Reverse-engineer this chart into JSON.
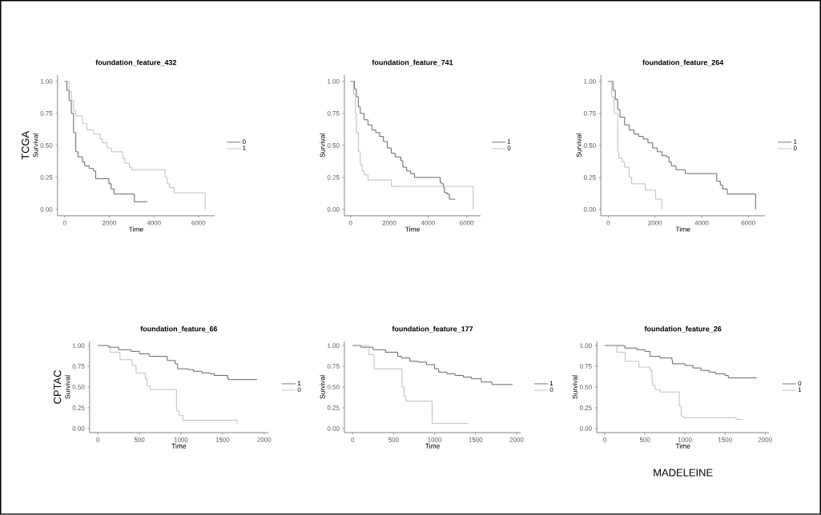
{
  "chart_data": [
    {
      "type": "step",
      "title": "foundation_feature_432",
      "xlabel": "Time",
      "ylabel": "Survival",
      "xlim": [
        -320,
        6720
      ],
      "ylim": [
        -0.05,
        1.05
      ],
      "xticks": [
        0,
        2000,
        4000,
        6000
      ],
      "yticks": [
        {
          "value": 0,
          "label": "0.00"
        },
        {
          "value": 0.25,
          "label": "0.25"
        },
        {
          "value": 0.5,
          "label": "0.50"
        },
        {
          "value": 0.75,
          "label": "0.75"
        },
        {
          "value": 1,
          "label": "1.00"
        }
      ],
      "legend": "right",
      "annotations": [
        "TCGA"
      ],
      "series": [
        {
          "name": "0",
          "color": "#555555",
          "x": [
            0,
            100,
            200,
            300,
            400,
            500,
            600,
            800,
            900,
            1100,
            1300,
            1390,
            1985,
            2083,
            2212,
            3125,
            3700
          ],
          "values": [
            1,
            0.93,
            0.85,
            0.75,
            0.6,
            0.45,
            0.41,
            0.37,
            0.34,
            0.32,
            0.3,
            0.24,
            0.2,
            0.16,
            0.12,
            0.06,
            0.06
          ]
        },
        {
          "name": "1",
          "color": "#b8b8b8",
          "x": [
            0,
            200,
            300,
            400,
            500,
            800,
            1000,
            1300,
            1600,
            1700,
            1900,
            2100,
            2600,
            2700,
            2900,
            3000,
            4500,
            4600,
            4700,
            4900,
            5000,
            6300,
            6300
          ],
          "values": [
            1,
            0.92,
            0.85,
            0.77,
            0.73,
            0.67,
            0.62,
            0.59,
            0.55,
            0.52,
            0.48,
            0.45,
            0.4,
            0.36,
            0.33,
            0.31,
            0.25,
            0.2,
            0.17,
            0.13,
            0.13,
            0.13,
            0
          ]
        }
      ]
    },
    {
      "type": "step",
      "title": "foundation_feature_741",
      "xlabel": "Time",
      "ylabel": "Survival",
      "xlim": [
        -320,
        6720
      ],
      "ylim": [
        -0.05,
        1.05
      ],
      "xticks": [
        0,
        2000,
        4000,
        6000
      ],
      "yticks": [
        {
          "value": 0,
          "label": "0.00"
        },
        {
          "value": 0.25,
          "label": "0.25"
        },
        {
          "value": 0.5,
          "label": "0.50"
        },
        {
          "value": 0.75,
          "label": "0.75"
        },
        {
          "value": 1,
          "label": "1.00"
        }
      ],
      "legend": "right",
      "series": [
        {
          "name": "1",
          "color": "#555555",
          "x": [
            0,
            200,
            300,
            400,
            500,
            700,
            900,
            1100,
            1300,
            1500,
            1700,
            1900,
            2100,
            2300,
            2600,
            2700,
            2900,
            3100,
            3300,
            4630,
            4700,
            4800,
            4850,
            5000,
            5100,
            5410
          ],
          "values": [
            1,
            0.94,
            0.88,
            0.8,
            0.75,
            0.7,
            0.66,
            0.62,
            0.6,
            0.57,
            0.53,
            0.48,
            0.44,
            0.41,
            0.38,
            0.33,
            0.3,
            0.28,
            0.25,
            0.21,
            0.2,
            0.17,
            0.13,
            0.12,
            0.08,
            0.08
          ]
        },
        {
          "name": "0",
          "color": "#b8b8b8",
          "x": [
            0,
            150,
            250,
            300,
            400,
            500,
            600,
            700,
            900,
            2114,
            6340,
            6340
          ],
          "values": [
            1,
            0.9,
            0.75,
            0.6,
            0.45,
            0.35,
            0.3,
            0.27,
            0.23,
            0.18,
            0.18,
            0
          ]
        }
      ]
    },
    {
      "type": "step",
      "title": "foundation_feature_264",
      "xlabel": "Time",
      "ylabel": "Survival",
      "xlim": [
        -320,
        6720
      ],
      "ylim": [
        -0.05,
        1.05
      ],
      "xticks": [
        0,
        2000,
        4000,
        6000
      ],
      "yticks": [
        {
          "value": 0,
          "label": "0.00"
        },
        {
          "value": 0.25,
          "label": "0.25"
        },
        {
          "value": 0.5,
          "label": "0.50"
        },
        {
          "value": 0.75,
          "label": "0.75"
        },
        {
          "value": 1,
          "label": "1.00"
        }
      ],
      "legend": "right",
      "series": [
        {
          "name": "1",
          "color": "#555555",
          "x": [
            0,
            200,
            300,
            400,
            500,
            700,
            900,
            1100,
            1300,
            1500,
            1700,
            1900,
            2100,
            2300,
            2500,
            2600,
            2700,
            2900,
            3300,
            4650,
            4700,
            4800,
            4900,
            5100,
            6310,
            6310
          ],
          "values": [
            1,
            0.93,
            0.86,
            0.78,
            0.72,
            0.66,
            0.62,
            0.59,
            0.57,
            0.55,
            0.52,
            0.48,
            0.45,
            0.42,
            0.41,
            0.37,
            0.34,
            0.31,
            0.28,
            0.22,
            0.22,
            0.19,
            0.16,
            0.12,
            0.12,
            0
          ]
        },
        {
          "name": "0",
          "color": "#b8b8b8",
          "x": [
            0,
            150,
            250,
            400,
            450,
            600,
            700,
            900,
            1000,
            1588,
            2030,
            2290,
            2290
          ],
          "values": [
            1,
            0.88,
            0.75,
            0.45,
            0.4,
            0.37,
            0.33,
            0.25,
            0.2,
            0.15,
            0.08,
            0.08,
            0
          ]
        }
      ]
    },
    {
      "type": "step",
      "title": "foundation_feature_66",
      "xlabel": "Time",
      "ylabel": "Survival",
      "xlim": [
        -100,
        2050
      ],
      "ylim": [
        -0.05,
        1.05
      ],
      "xticks": [
        0,
        500,
        1000,
        1500,
        2000
      ],
      "yticks": [
        {
          "value": 0,
          "label": "0.00"
        },
        {
          "value": 0.25,
          "label": "0.25"
        },
        {
          "value": 0.5,
          "label": "0.50"
        },
        {
          "value": 0.75,
          "label": "0.75"
        },
        {
          "value": 1,
          "label": "1.00"
        }
      ],
      "legend": "right",
      "annotations": [
        "CPTAC"
      ],
      "series": [
        {
          "name": "1",
          "color": "#555555",
          "x": [
            0,
            130,
            250,
            400,
            500,
            617,
            835,
            930,
            960,
            1085,
            1150,
            1250,
            1350,
            1400,
            1560,
            1570,
            1915
          ],
          "values": [
            1,
            0.98,
            0.95,
            0.93,
            0.9,
            0.87,
            0.82,
            0.78,
            0.72,
            0.71,
            0.69,
            0.67,
            0.66,
            0.64,
            0.61,
            0.59,
            0.59
          ]
        },
        {
          "name": "0",
          "color": "#b8b8b8",
          "x": [
            0,
            150,
            266,
            413,
            460,
            570,
            592,
            632,
            945,
            977,
            1023,
            1675
          ],
          "values": [
            1,
            0.92,
            0.83,
            0.76,
            0.67,
            0.6,
            0.51,
            0.47,
            0.21,
            0.16,
            0.1,
            0.05
          ]
        }
      ]
    },
    {
      "type": "step",
      "title": "foundation_feature_177",
      "xlabel": "Time",
      "ylabel": "Survival",
      "xlim": [
        -100,
        2050
      ],
      "ylim": [
        -0.05,
        1.05
      ],
      "xticks": [
        0,
        500,
        1000,
        1500,
        2000
      ],
      "yticks": [
        {
          "value": 0,
          "label": "0.00"
        },
        {
          "value": 0.25,
          "label": "0.25"
        },
        {
          "value": 0.5,
          "label": "0.50"
        },
        {
          "value": 0.75,
          "label": "0.75"
        },
        {
          "value": 1,
          "label": "1.00"
        }
      ],
      "legend": "right",
      "series": [
        {
          "name": "1",
          "color": "#555555",
          "x": [
            0,
            100,
            250,
            400,
            550,
            597,
            700,
            800,
            900,
            1000,
            1050,
            1150,
            1250,
            1350,
            1450,
            1570,
            1700,
            1950
          ],
          "values": [
            1,
            0.98,
            0.95,
            0.92,
            0.87,
            0.85,
            0.81,
            0.8,
            0.77,
            0.72,
            0.68,
            0.66,
            0.64,
            0.62,
            0.6,
            0.56,
            0.53,
            0.53
          ]
        },
        {
          "name": "0",
          "color": "#b8b8b8",
          "x": [
            0,
            200,
            262,
            603,
            628,
            650,
            970,
            1410
          ],
          "values": [
            1,
            0.89,
            0.72,
            0.5,
            0.39,
            0.33,
            0.06,
            0.06
          ]
        }
      ]
    },
    {
      "type": "step",
      "title": "foundation_feature_26",
      "xlabel": "Time",
      "ylabel": "Survival",
      "xlim": [
        -100,
        2050
      ],
      "ylim": [
        -0.05,
        1.05
      ],
      "xticks": [
        0,
        500,
        1000,
        1500,
        2000
      ],
      "yticks": [
        {
          "value": 0,
          "label": "0.00"
        },
        {
          "value": 0.25,
          "label": "0.25"
        },
        {
          "value": 0.5,
          "label": "0.50"
        },
        {
          "value": 0.75,
          "label": "0.75"
        },
        {
          "value": 1,
          "label": "1.00"
        }
      ],
      "legend": "right",
      "annotations": [
        "MADELEINE"
      ],
      "series": [
        {
          "name": "0",
          "color": "#555555",
          "x": [
            0,
            250,
            400,
            500,
            565,
            690,
            838,
            845,
            1000,
            1100,
            1200,
            1300,
            1380,
            1500,
            1540,
            1895
          ],
          "values": [
            1,
            0.97,
            0.95,
            0.93,
            0.87,
            0.85,
            0.82,
            0.78,
            0.76,
            0.73,
            0.7,
            0.68,
            0.66,
            0.64,
            0.61,
            0.61
          ]
        },
        {
          "name": "1",
          "color": "#b8b8b8",
          "x": [
            0,
            150,
            255,
            425,
            565,
            587,
            596,
            627,
            690,
            929,
            953,
            985,
            1637,
            1715
          ],
          "values": [
            1,
            0.92,
            0.81,
            0.74,
            0.7,
            0.6,
            0.52,
            0.47,
            0.44,
            0.27,
            0.15,
            0.13,
            0.11,
            0.11
          ]
        }
      ]
    }
  ]
}
